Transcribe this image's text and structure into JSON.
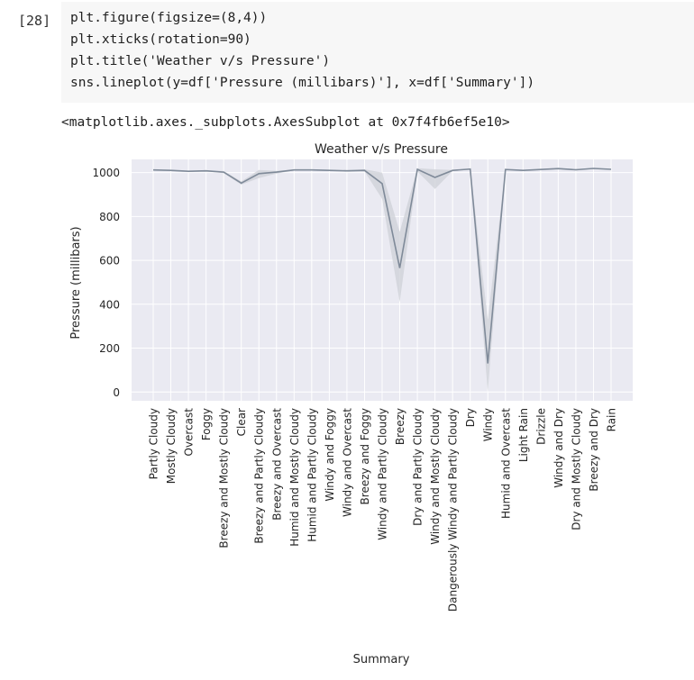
{
  "cell": {
    "prompt": "[28]",
    "code_lines": [
      "plt.figure(figsize=(8,4))",
      "plt.xticks(rotation=90)",
      "plt.title('Weather v/s Pressure')",
      "sns.lineplot(y=df['Pressure (millibars)'], x=df['Summary'])"
    ],
    "output_text": "<matplotlib.axes._subplots.AxesSubplot at 0x7f4fb6ef5e10>"
  },
  "colors": {
    "line": "#7f8a99",
    "band": "#cfd2d8",
    "axes_bg": "#eaeaf2",
    "grid": "#ffffff"
  },
  "chart_data": {
    "type": "line",
    "title": "Weather v/s Pressure",
    "xlabel": "Summary",
    "ylabel": "Pressure (millibars)",
    "ylim": [
      -40,
      1060
    ],
    "yticks": [
      0,
      200,
      400,
      600,
      800,
      1000
    ],
    "grid": true,
    "categories": [
      "Partly Cloudy",
      "Mostly Cloudy",
      "Overcast",
      "Foggy",
      "Breezy and Mostly Cloudy",
      "Clear",
      "Breezy and Partly Cloudy",
      "Breezy and Overcast",
      "Humid and Mostly Cloudy",
      "Humid and Partly Cloudy",
      "Windy and Foggy",
      "Windy and Overcast",
      "Breezy and Foggy",
      "Windy and Partly Cloudy",
      "Breezy",
      "Dry and Partly Cloudy",
      "Windy and Mostly Cloudy",
      "Dangerously Windy and Partly Cloudy",
      "Dry",
      "Windy",
      "Humid and Overcast",
      "Light Rain",
      "Drizzle",
      "Windy and Dry",
      "Dry and Mostly Cloudy",
      "Breezy and Dry",
      "Rain"
    ],
    "series": [
      {
        "values": [
          1012,
          1010,
          1006,
          1008,
          1002,
          952,
          995,
          1002,
          1012,
          1012,
          1010,
          1008,
          1010,
          950,
          565,
          1015,
          978,
          1010,
          1016,
          130,
          1014,
          1010,
          1014,
          1018,
          1013,
          1019,
          1015
        ],
        "ci_low": [
          1010,
          1008,
          1004,
          1005,
          997,
          945,
          975,
          995,
          1010,
          1009,
          1007,
          1005,
          1005,
          880,
          410,
          1005,
          925,
          1008,
          1014,
          0,
          1012,
          1008,
          1012,
          1016,
          1010,
          1017,
          1013
        ],
        "ci_high": [
          1014,
          1012,
          1008,
          1011,
          1007,
          960,
          1012,
          1008,
          1014,
          1015,
          1013,
          1011,
          1015,
          1000,
          730,
          1020,
          1015,
          1012,
          1018,
          330,
          1016,
          1012,
          1016,
          1020,
          1016,
          1021,
          1017
        ]
      }
    ]
  }
}
